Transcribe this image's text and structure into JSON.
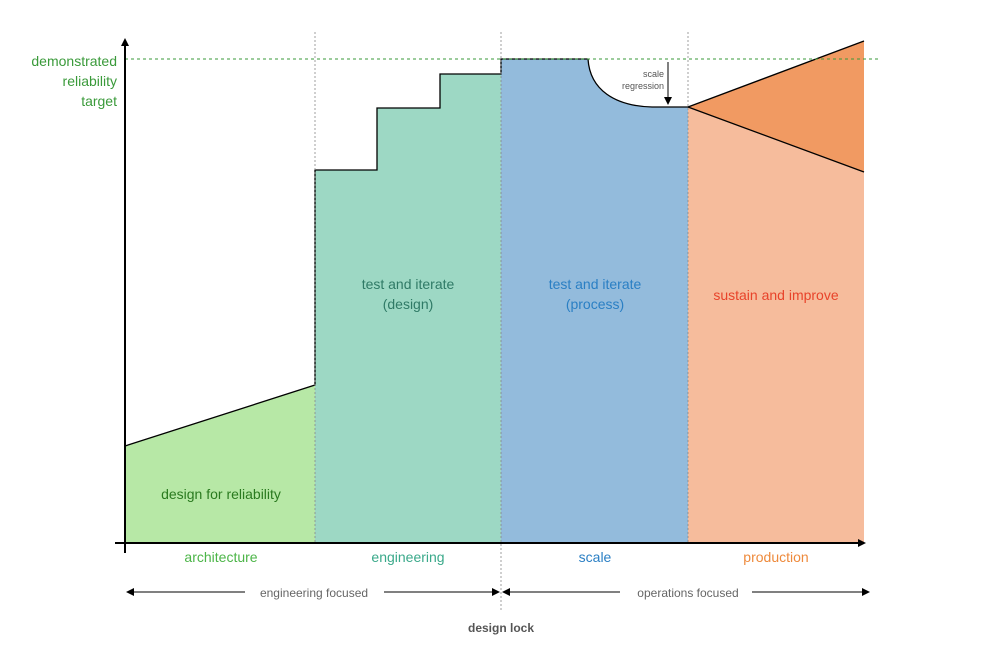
{
  "target": {
    "line1": "demonstrated",
    "line2": "reliability",
    "line3": "target",
    "color": "#3a9a3a"
  },
  "regions": [
    {
      "id": "design",
      "line1": "design for reliability",
      "line2": "",
      "fill": "#b7e8a6",
      "text_color": "#2a7a1f"
    },
    {
      "id": "test-design",
      "line1": "test and iterate",
      "line2": "(design)",
      "fill": "#9dd8c4",
      "text_color": "#2f7a66"
    },
    {
      "id": "test-process",
      "line1": "test and iterate",
      "line2": "(process)",
      "fill": "#93bbdc",
      "text_color": "#2a7fc4"
    },
    {
      "id": "sustain",
      "line1": "sustain and improve",
      "line2": "",
      "fill": "#f6bc9c",
      "text_color": "#e8432a"
    }
  ],
  "sustain_range_fill": "#f19a62",
  "annotation": {
    "line1": "scale",
    "line2": "regression"
  },
  "phases": [
    {
      "label": "architecture",
      "color": "#4cb548"
    },
    {
      "label": "engineering",
      "color": "#3aa98a"
    },
    {
      "label": "scale",
      "color": "#2a7fc4"
    },
    {
      "label": "production",
      "color": "#ee8a3c"
    }
  ],
  "focus": {
    "left": "engineering focused",
    "right": "operations focused"
  },
  "design_lock": "design lock"
}
